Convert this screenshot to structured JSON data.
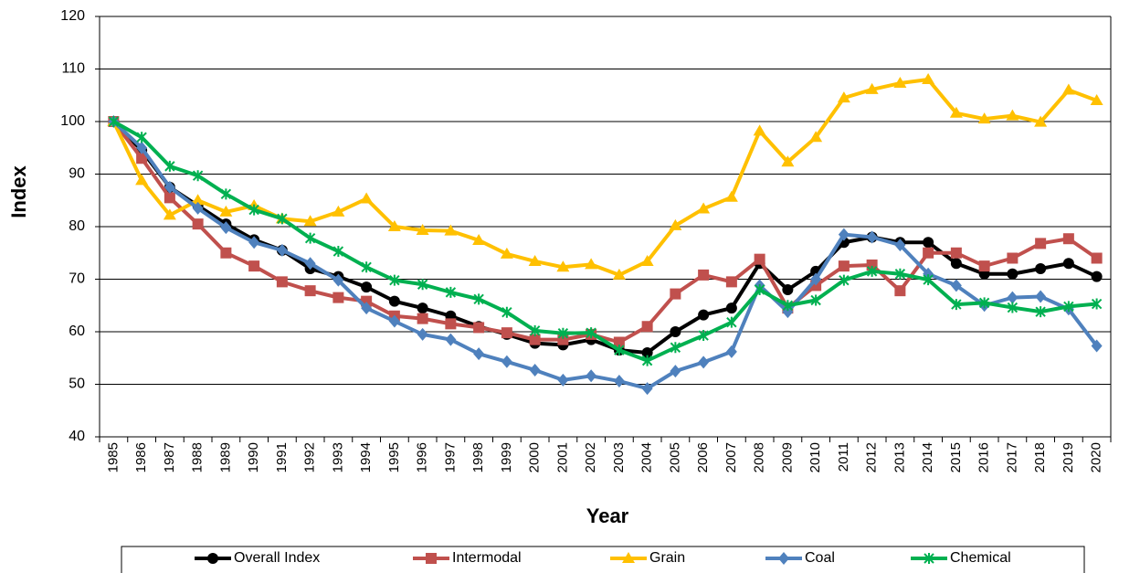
{
  "chart_data": {
    "type": "line",
    "x_label": "Year",
    "y_label": "Index",
    "categories": [
      "1985",
      "1986",
      "1987",
      "1988",
      "1989",
      "1990",
      "1991",
      "1992",
      "1993",
      "1994",
      "1995",
      "1996",
      "1997",
      "1998",
      "1999",
      "2000",
      "2001",
      "2002",
      "2003",
      "2004",
      "2005",
      "2006",
      "2007",
      "2008",
      "2009",
      "2010",
      "2011",
      "2012",
      "2013",
      "2014",
      "2015",
      "2016",
      "2017",
      "2018",
      "2019",
      "2020"
    ],
    "ylim": [
      40,
      120
    ],
    "yticks": [
      40,
      50,
      60,
      70,
      80,
      90,
      100,
      110,
      120
    ],
    "grid": true,
    "series": [
      {
        "name": "Overall Index",
        "color": "#000000",
        "marker": "circle",
        "values": [
          100,
          94.5,
          87.5,
          84,
          80.5,
          77.5,
          75.5,
          72,
          70.5,
          68.5,
          65.8,
          64.5,
          63,
          61,
          59.5,
          57.8,
          57.5,
          58.5,
          56.5,
          56,
          60,
          63.2,
          64.5,
          73,
          68,
          71.5,
          77,
          78,
          77,
          77,
          73,
          71,
          71,
          72,
          73,
          70.5
        ]
      },
      {
        "name": "Intermodal",
        "color": "#c0504d",
        "marker": "square",
        "values": [
          100,
          93,
          85.5,
          80.5,
          75,
          72.5,
          69.5,
          67.8,
          66.5,
          65.8,
          63,
          62.5,
          61.5,
          60.8,
          59.8,
          58.5,
          58.5,
          59.5,
          58,
          61,
          67.2,
          70.8,
          69.5,
          73.8,
          64.5,
          68.8,
          72.5,
          72.7,
          67.8,
          75,
          75,
          72.5,
          74,
          76.8,
          77.7,
          74
        ]
      },
      {
        "name": "Grain",
        "color": "#ffc000",
        "marker": "triangle",
        "values": [
          100,
          88.8,
          82.2,
          85,
          82.8,
          84,
          81.5,
          81,
          82.8,
          85.3,
          80,
          79.3,
          79.2,
          77.4,
          74.8,
          73.4,
          72.3,
          72.8,
          70.8,
          73.4,
          80.2,
          83.4,
          85.6,
          98.2,
          92.3,
          97,
          104.5,
          106.1,
          107.3,
          108,
          101.6,
          100.5,
          101.1,
          99.9,
          106,
          104
        ]
      },
      {
        "name": "Coal",
        "color": "#4f81bd",
        "marker": "diamond",
        "values": [
          100,
          95,
          87.5,
          83.5,
          79.8,
          77,
          75.5,
          73,
          69.8,
          64.5,
          62,
          59.5,
          58.5,
          55.8,
          54.3,
          52.7,
          50.8,
          51.6,
          50.6,
          49.2,
          52.5,
          54.2,
          56.2,
          68.8,
          63.8,
          70,
          78.5,
          78,
          76.5,
          71,
          68.8,
          65,
          66.5,
          66.7,
          64.3,
          57.3
        ]
      },
      {
        "name": "Chemical",
        "color": "#00b050",
        "marker": "star",
        "values": [
          100,
          97,
          91.5,
          89.7,
          86.2,
          83.2,
          81.5,
          77.8,
          75.3,
          72.3,
          69.8,
          69,
          67.5,
          66.2,
          63.7,
          60.2,
          59.7,
          59.8,
          56.5,
          54.5,
          57,
          59.3,
          61.8,
          68,
          65,
          66,
          69.8,
          71.5,
          71,
          69.9,
          65.2,
          65.5,
          64.6,
          63.8,
          64.8,
          65.3
        ]
      }
    ]
  }
}
